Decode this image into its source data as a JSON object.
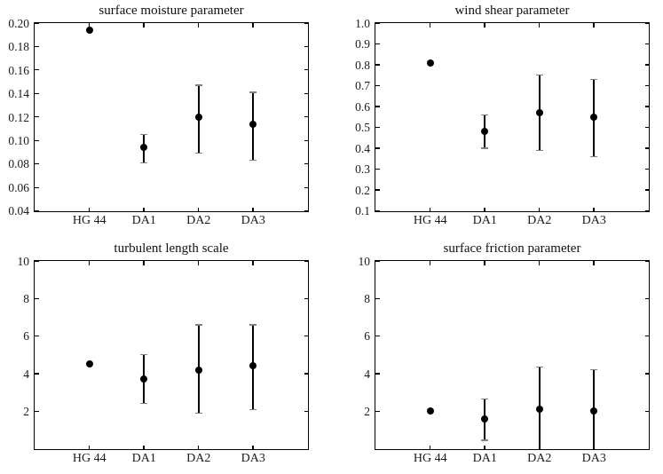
{
  "figure": {
    "background": "#ffffff",
    "line_color": "#000000",
    "cap_color": "#808080",
    "text_color": "#1a1a1a",
    "grid": false,
    "legend": "none"
  },
  "chart_data": [
    {
      "type": "scatter",
      "title": "surface moisture parameter",
      "categories": [
        "HG 44",
        "DA1",
        "DA2",
        "DA3"
      ],
      "xlim": [
        0,
        5
      ],
      "ylim": [
        0.04,
        0.2
      ],
      "yticks": [
        0.04,
        0.06,
        0.08,
        0.1,
        0.12,
        0.14,
        0.16,
        0.18,
        0.2
      ],
      "ytick_labels": [
        "0.04",
        "0.06",
        "0.08",
        "0.10",
        "0.12",
        "0.14",
        "0.16",
        "0.18",
        "0.20"
      ],
      "points": [
        {
          "category": "HG 44",
          "value": 0.194,
          "err_low": null,
          "err_high": null,
          "cap_low": false,
          "cap_high": false
        },
        {
          "category": "DA1",
          "value": 0.094,
          "err_low": 0.081,
          "err_high": 0.105,
          "cap_low": true,
          "cap_high": true
        },
        {
          "category": "DA2",
          "value": 0.12,
          "err_low": 0.089,
          "err_high": 0.147,
          "cap_low": true,
          "cap_high": true
        },
        {
          "category": "DA3",
          "value": 0.114,
          "err_low": 0.083,
          "err_high": 0.141,
          "cap_low": true,
          "cap_high": true
        }
      ]
    },
    {
      "type": "scatter",
      "title": "wind shear parameter",
      "categories": [
        "HG 44",
        "DA1",
        "DA2",
        "DA3"
      ],
      "xlim": [
        0,
        5
      ],
      "ylim": [
        0.1,
        1.0
      ],
      "yticks": [
        0.1,
        0.2,
        0.3,
        0.4,
        0.5,
        0.6,
        0.7,
        0.8,
        0.9,
        1.0
      ],
      "ytick_labels": [
        "0.1",
        "0.2",
        "0.3",
        "0.4",
        "0.5",
        "0.6",
        "0.7",
        "0.8",
        "0.9",
        "1.0"
      ],
      "points": [
        {
          "category": "HG 44",
          "value": 0.81,
          "err_low": null,
          "err_high": null,
          "cap_low": false,
          "cap_high": false
        },
        {
          "category": "DA1",
          "value": 0.48,
          "err_low": 0.4,
          "err_high": 0.56,
          "cap_low": true,
          "cap_high": true
        },
        {
          "category": "DA2",
          "value": 0.57,
          "err_low": 0.39,
          "err_high": 0.75,
          "cap_low": true,
          "cap_high": true
        },
        {
          "category": "DA3",
          "value": 0.55,
          "err_low": 0.36,
          "err_high": 0.73,
          "cap_low": true,
          "cap_high": true
        }
      ]
    },
    {
      "type": "scatter",
      "title": "turbulent length scale",
      "categories": [
        "HG 44",
        "DA1",
        "DA2",
        "DA3"
      ],
      "xlim": [
        0,
        5
      ],
      "ylim": [
        0,
        10
      ],
      "yticks": [
        2,
        4,
        6,
        8,
        10
      ],
      "ytick_labels": [
        "2",
        "4",
        "6",
        "8",
        "10"
      ],
      "points": [
        {
          "category": "HG 44",
          "value": 4.5,
          "err_low": null,
          "err_high": null,
          "cap_low": false,
          "cap_high": false
        },
        {
          "category": "DA1",
          "value": 3.7,
          "err_low": 2.4,
          "err_high": 5.0,
          "cap_low": true,
          "cap_high": true
        },
        {
          "category": "DA2",
          "value": 4.2,
          "err_low": 1.9,
          "err_high": 6.6,
          "cap_low": true,
          "cap_high": true
        },
        {
          "category": "DA3",
          "value": 4.4,
          "err_low": 2.1,
          "err_high": 6.6,
          "cap_low": true,
          "cap_high": true
        }
      ]
    },
    {
      "type": "scatter",
      "title": "surface friction parameter",
      "categories": [
        "HG 44",
        "DA1",
        "DA2",
        "DA3"
      ],
      "xlim": [
        0,
        5
      ],
      "ylim": [
        0,
        10
      ],
      "yticks": [
        2,
        4,
        6,
        8,
        10
      ],
      "ytick_labels": [
        "2",
        "4",
        "6",
        "8",
        "10"
      ],
      "points": [
        {
          "category": "HG 44",
          "value": 2.0,
          "err_low": null,
          "err_high": null,
          "cap_low": false,
          "cap_high": false
        },
        {
          "category": "DA1",
          "value": 1.6,
          "err_low": 0.45,
          "err_high": 2.65,
          "cap_low": true,
          "cap_high": true
        },
        {
          "category": "DA2",
          "value": 2.1,
          "err_low": 0.0,
          "err_high": 4.35,
          "cap_low": false,
          "cap_high": true
        },
        {
          "category": "DA3",
          "value": 2.0,
          "err_low": 0.0,
          "err_high": 4.2,
          "cap_low": false,
          "cap_high": true
        }
      ]
    }
  ]
}
